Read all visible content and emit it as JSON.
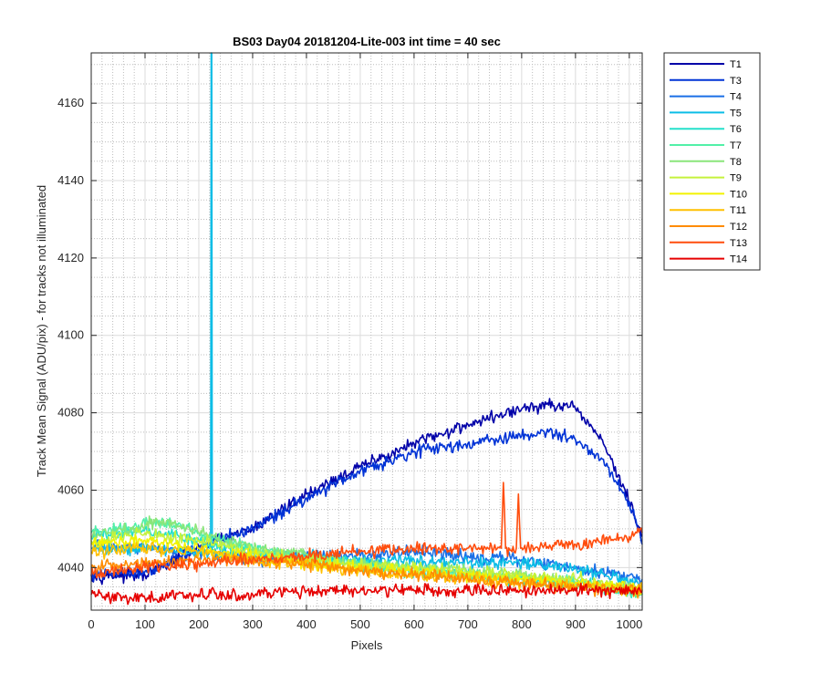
{
  "chart_data": {
    "type": "line",
    "title": "BS03 Day04 20181204-Lite-003 int time = 40 sec",
    "xlabel": "Pixels",
    "ylabel": "Track Mean Signal (ADU/pix) - for tracks not illuminated",
    "xlim": [
      0,
      1024
    ],
    "ylim": [
      4029,
      4173
    ],
    "x_ticks": [
      0,
      100,
      200,
      300,
      400,
      500,
      600,
      700,
      800,
      900,
      1000
    ],
    "y_ticks": [
      4040,
      4060,
      4080,
      4100,
      4120,
      4140,
      4160
    ],
    "grid": "on (major and minor)",
    "legend_position": "outside right, top",
    "series": [
      {
        "name": "T1",
        "color": "#0000a8",
        "x": [
          0,
          100,
          200,
          300,
          400,
          500,
          600,
          700,
          800,
          850,
          900,
          950,
          1000,
          1024
        ],
        "y": [
          4038,
          4038,
          4045,
          4050,
          4059,
          4066,
          4072,
          4077,
          4081,
          4082,
          4081,
          4073,
          4057,
          4048
        ]
      },
      {
        "name": "T3",
        "color": "#0033d6",
        "x": [
          0,
          100,
          200,
          300,
          400,
          500,
          600,
          700,
          800,
          850,
          900,
          950,
          1000,
          1024
        ],
        "y": [
          4038,
          4039,
          4045,
          4050,
          4058,
          4065,
          4070,
          4072,
          4074,
          4075,
          4073,
          4068,
          4057,
          4046
        ]
      },
      {
        "name": "T4",
        "color": "#1a6fe6",
        "x": [
          0,
          100,
          200,
          300,
          400,
          500,
          600,
          700,
          800,
          900,
          1000,
          1024
        ],
        "y": [
          4046,
          4045,
          4044,
          4042,
          4043,
          4043,
          4044,
          4043,
          4042,
          4040,
          4038,
          4037
        ]
      },
      {
        "name": "T5",
        "color": "#0bbde6",
        "x": [
          0,
          100,
          200,
          222,
          223,
          224,
          225,
          300,
          400,
          500,
          600,
          700,
          800,
          900,
          1000,
          1024
        ],
        "y": [
          4045,
          4045,
          4044,
          4044,
          4173,
          4173,
          4044,
          4043,
          4043,
          4042,
          4042,
          4041,
          4041,
          4040,
          4036,
          4035
        ]
      },
      {
        "name": "T6",
        "color": "#25e0cc",
        "x": [
          0,
          100,
          200,
          300,
          400,
          500,
          600,
          700,
          800,
          900,
          1000,
          1024
        ],
        "y": [
          4048,
          4050,
          4047,
          4044,
          4042,
          4041,
          4039,
          4038,
          4037,
          4036,
          4034,
          4033
        ]
      },
      {
        "name": "T7",
        "color": "#52f0a8",
        "x": [
          0,
          100,
          130,
          200,
          300,
          400,
          500,
          600,
          700,
          800,
          900,
          1000,
          1024
        ],
        "y": [
          4049,
          4051,
          4052,
          4049,
          4045,
          4042,
          4041,
          4039,
          4038,
          4037,
          4036,
          4034,
          4033
        ]
      },
      {
        "name": "T8",
        "color": "#8ae67a",
        "x": [
          0,
          100,
          130,
          200,
          300,
          400,
          500,
          600,
          700,
          800,
          900,
          1000,
          1024
        ],
        "y": [
          4048,
          4051,
          4052,
          4049,
          4045,
          4043,
          4041,
          4040,
          4039,
          4038,
          4036,
          4035,
          4034
        ]
      },
      {
        "name": "T9",
        "color": "#c5f23c",
        "x": [
          0,
          100,
          200,
          300,
          400,
          500,
          600,
          700,
          800,
          900,
          1000,
          1024
        ],
        "y": [
          4047,
          4049,
          4047,
          4044,
          4042,
          4041,
          4040,
          4039,
          4038,
          4037,
          4035,
          4034
        ]
      },
      {
        "name": "T10",
        "color": "#f2f200",
        "x": [
          0,
          100,
          200,
          300,
          400,
          500,
          600,
          700,
          800,
          900,
          1000,
          1024
        ],
        "y": [
          4046,
          4047,
          4045,
          4043,
          4041,
          4040,
          4039,
          4038,
          4037,
          4036,
          4035,
          4034
        ]
      },
      {
        "name": "T11",
        "color": "#ffc000",
        "x": [
          0,
          100,
          200,
          300,
          400,
          500,
          600,
          700,
          800,
          900,
          1000,
          1024
        ],
        "y": [
          4044,
          4045,
          4044,
          4042,
          4041,
          4039,
          4038,
          4037,
          4036,
          4035,
          4034,
          4034
        ]
      },
      {
        "name": "T12",
        "color": "#ff8c00",
        "x": [
          0,
          100,
          200,
          300,
          400,
          500,
          600,
          700,
          800,
          900,
          1000,
          1024
        ],
        "y": [
          4040,
          4041,
          4042,
          4042,
          4041,
          4039,
          4038,
          4037,
          4036,
          4035,
          4034,
          4034
        ]
      },
      {
        "name": "T13",
        "color": "#ff4d0d",
        "x": [
          0,
          100,
          200,
          300,
          400,
          500,
          600,
          700,
          762,
          766,
          770,
          790,
          794,
          798,
          900,
          1000,
          1024
        ],
        "y": [
          4038,
          4040,
          4041,
          4042,
          4043,
          4044,
          4045,
          4045,
          4045,
          4062,
          4045,
          4045,
          4059,
          4045,
          4046,
          4048,
          4049
        ]
      },
      {
        "name": "T14",
        "color": "#e60000",
        "x": [
          0,
          100,
          200,
          300,
          400,
          500,
          600,
          700,
          800,
          900,
          1000,
          1024
        ],
        "y": [
          4033,
          4032,
          4033,
          4033,
          4034,
          4034,
          4034,
          4034,
          4034,
          4034,
          4034,
          4034
        ]
      }
    ]
  }
}
